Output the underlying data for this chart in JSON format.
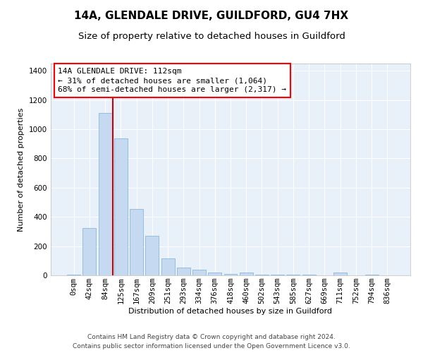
{
  "title": "14A, GLENDALE DRIVE, GUILDFORD, GU4 7HX",
  "subtitle": "Size of property relative to detached houses in Guildford",
  "xlabel": "Distribution of detached houses by size in Guildford",
  "ylabel": "Number of detached properties",
  "bar_color": "#c5d9f0",
  "bar_edge_color": "#7bafd4",
  "background_color": "#e8f0fa",
  "grid_color": "#ffffff",
  "vline_color": "#cc0000",
  "vline_x": 2.5,
  "categories": [
    "0sqm",
    "42sqm",
    "84sqm",
    "125sqm",
    "167sqm",
    "209sqm",
    "251sqm",
    "293sqm",
    "334sqm",
    "376sqm",
    "418sqm",
    "460sqm",
    "502sqm",
    "543sqm",
    "585sqm",
    "627sqm",
    "669sqm",
    "711sqm",
    "752sqm",
    "794sqm",
    "836sqm"
  ],
  "values": [
    5,
    325,
    1110,
    940,
    455,
    270,
    115,
    55,
    38,
    18,
    10,
    18,
    5,
    5,
    5,
    5,
    0,
    18,
    0,
    5,
    0
  ],
  "ylim": [
    0,
    1450
  ],
  "yticks": [
    0,
    200,
    400,
    600,
    800,
    1000,
    1200,
    1400
  ],
  "annotation_text": "14A GLENDALE DRIVE: 112sqm\n← 31% of detached houses are smaller (1,064)\n68% of semi-detached houses are larger (2,317) →",
  "footer_line1": "Contains HM Land Registry data © Crown copyright and database right 2024.",
  "footer_line2": "Contains public sector information licensed under the Open Government Licence v3.0.",
  "title_fontsize": 11,
  "subtitle_fontsize": 9.5,
  "axis_label_fontsize": 8,
  "tick_fontsize": 7.5,
  "annotation_fontsize": 8,
  "footer_fontsize": 6.5
}
